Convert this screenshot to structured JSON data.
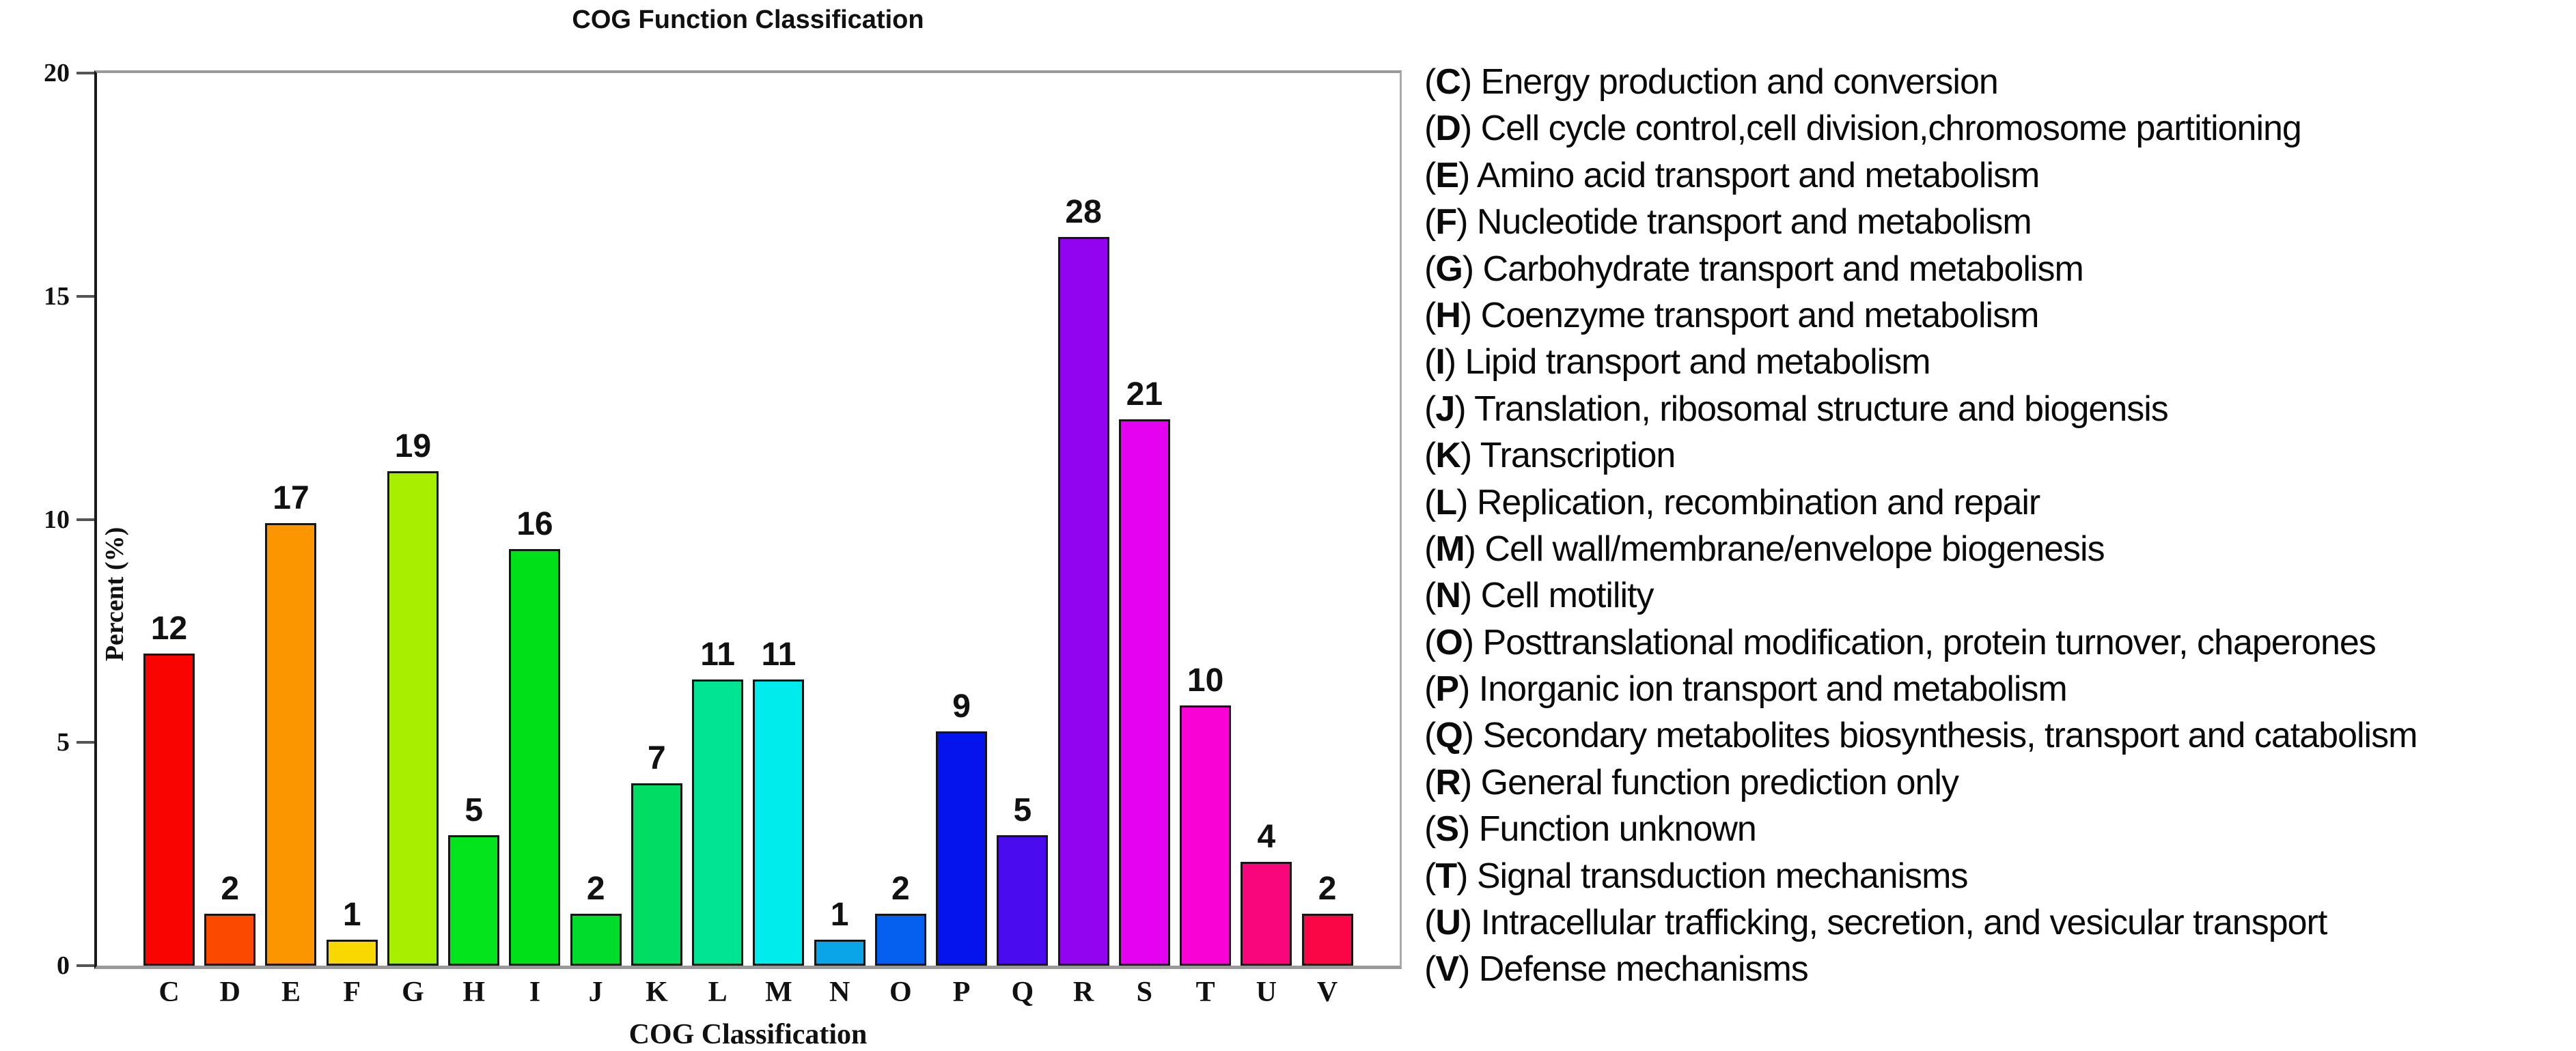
{
  "title": "COG Function Classification",
  "axes": {
    "y_label": "Percent (%)",
    "x_label": "COG Classification"
  },
  "chart_data": {
    "type": "bar",
    "title": "COG Function Classification",
    "xlabel": "COG Classification",
    "ylabel": "Percent (%)",
    "ylim": [
      0,
      20
    ],
    "yticks": [
      0,
      5,
      10,
      15,
      20
    ],
    "grid": false,
    "legend_position": "right",
    "categories": [
      "C",
      "D",
      "E",
      "F",
      "G",
      "H",
      "I",
      "J",
      "K",
      "L",
      "M",
      "N",
      "O",
      "P",
      "Q",
      "R",
      "S",
      "T",
      "U",
      "V"
    ],
    "counts": [
      12,
      2,
      17,
      1,
      19,
      5,
      16,
      2,
      7,
      11,
      11,
      1,
      2,
      9,
      5,
      28,
      21,
      10,
      4,
      2
    ],
    "percents": [
      7.0,
      1.17,
      9.91,
      0.58,
      11.08,
      2.92,
      9.33,
      1.17,
      4.08,
      6.41,
      6.41,
      0.58,
      1.17,
      5.25,
      2.92,
      16.33,
      12.24,
      5.83,
      2.33,
      1.17
    ],
    "bar_colors": [
      "#fa0400",
      "#fb4a00",
      "#fb9500",
      "#f8d800",
      "#a8ee00",
      "#04e41c",
      "#00e018",
      "#00dc2c",
      "#00dc64",
      "#00e494",
      "#00ecec",
      "#0aa4e8",
      "#0560f0",
      "#0513ec",
      "#4a0cee",
      "#9203f0",
      "#e402f0",
      "#f802d6",
      "#f9067c",
      "#fa0646"
    ],
    "legend": [
      {
        "letter": "C",
        "label": "Energy production and conversion"
      },
      {
        "letter": "D",
        "label": "Cell cycle control,cell division,chromosome partitioning"
      },
      {
        "letter": "E",
        "label": "Amino acid transport and metabolism"
      },
      {
        "letter": "F",
        "label": "Nucleotide transport and metabolism"
      },
      {
        "letter": "G",
        "label": "Carbohydrate transport and metabolism"
      },
      {
        "letter": "H",
        "label": "Coenzyme transport and metabolism"
      },
      {
        "letter": "I",
        "label": "Lipid transport and metabolism"
      },
      {
        "letter": "J",
        "label": "Translation, ribosomal structure and biogensis"
      },
      {
        "letter": "K",
        "label": "Transcription"
      },
      {
        "letter": "L",
        "label": "Replication, recombination and repair"
      },
      {
        "letter": "M",
        "label": "Cell wall/membrane/envelope biogenesis"
      },
      {
        "letter": "N",
        "label": "Cell motility"
      },
      {
        "letter": "O",
        "label": "Posttranslational modification, protein turnover, chaperones"
      },
      {
        "letter": "P",
        "label": "Inorganic ion transport and metabolism"
      },
      {
        "letter": "Q",
        "label": "Secondary metabolites biosynthesis, transport and catabolism"
      },
      {
        "letter": "R",
        "label": "General function prediction only"
      },
      {
        "letter": "S",
        "label": "Function unknown"
      },
      {
        "letter": "T",
        "label": "Signal transduction mechanisms"
      },
      {
        "letter": "U",
        "label": "Intracellular trafficking, secretion, and vesicular transport"
      },
      {
        "letter": "V",
        "label": "Defense mechanisms"
      }
    ]
  }
}
